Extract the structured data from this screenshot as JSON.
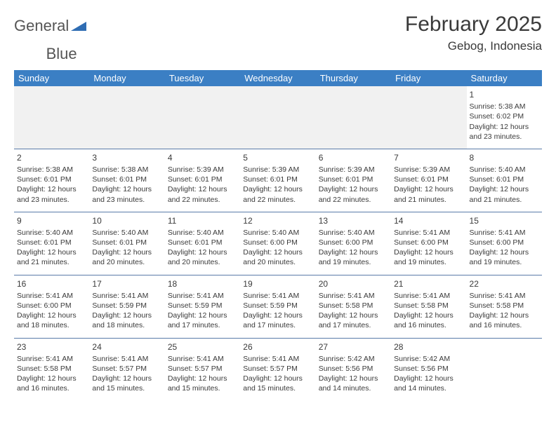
{
  "logo": {
    "word1": "General",
    "word2": "Blue"
  },
  "header": {
    "month_title": "February 2025",
    "location": "Gebog, Indonesia"
  },
  "colors": {
    "header_bg": "#3b7fc4",
    "header_text": "#ffffff",
    "row_divider": "#5a7ba8",
    "empty_bg": "#f1f1f1",
    "text": "#3a3a3a",
    "logo_tri": "#2f6db3"
  },
  "typography": {
    "month_title_fontsize": 30,
    "location_fontsize": 17,
    "day_header_fontsize": 13,
    "daynum_fontsize": 12,
    "cell_fontsize": 10.5
  },
  "calendar": {
    "day_headers": [
      "Sunday",
      "Monday",
      "Tuesday",
      "Wednesday",
      "Thursday",
      "Friday",
      "Saturday"
    ],
    "weeks": [
      [
        null,
        null,
        null,
        null,
        null,
        null,
        {
          "n": "1",
          "sunrise": "Sunrise: 5:38 AM",
          "sunset": "Sunset: 6:02 PM",
          "day1": "Daylight: 12 hours",
          "day2": "and 23 minutes."
        }
      ],
      [
        {
          "n": "2",
          "sunrise": "Sunrise: 5:38 AM",
          "sunset": "Sunset: 6:01 PM",
          "day1": "Daylight: 12 hours",
          "day2": "and 23 minutes."
        },
        {
          "n": "3",
          "sunrise": "Sunrise: 5:38 AM",
          "sunset": "Sunset: 6:01 PM",
          "day1": "Daylight: 12 hours",
          "day2": "and 23 minutes."
        },
        {
          "n": "4",
          "sunrise": "Sunrise: 5:39 AM",
          "sunset": "Sunset: 6:01 PM",
          "day1": "Daylight: 12 hours",
          "day2": "and 22 minutes."
        },
        {
          "n": "5",
          "sunrise": "Sunrise: 5:39 AM",
          "sunset": "Sunset: 6:01 PM",
          "day1": "Daylight: 12 hours",
          "day2": "and 22 minutes."
        },
        {
          "n": "6",
          "sunrise": "Sunrise: 5:39 AM",
          "sunset": "Sunset: 6:01 PM",
          "day1": "Daylight: 12 hours",
          "day2": "and 22 minutes."
        },
        {
          "n": "7",
          "sunrise": "Sunrise: 5:39 AM",
          "sunset": "Sunset: 6:01 PM",
          "day1": "Daylight: 12 hours",
          "day2": "and 21 minutes."
        },
        {
          "n": "8",
          "sunrise": "Sunrise: 5:40 AM",
          "sunset": "Sunset: 6:01 PM",
          "day1": "Daylight: 12 hours",
          "day2": "and 21 minutes."
        }
      ],
      [
        {
          "n": "9",
          "sunrise": "Sunrise: 5:40 AM",
          "sunset": "Sunset: 6:01 PM",
          "day1": "Daylight: 12 hours",
          "day2": "and 21 minutes."
        },
        {
          "n": "10",
          "sunrise": "Sunrise: 5:40 AM",
          "sunset": "Sunset: 6:01 PM",
          "day1": "Daylight: 12 hours",
          "day2": "and 20 minutes."
        },
        {
          "n": "11",
          "sunrise": "Sunrise: 5:40 AM",
          "sunset": "Sunset: 6:01 PM",
          "day1": "Daylight: 12 hours",
          "day2": "and 20 minutes."
        },
        {
          "n": "12",
          "sunrise": "Sunrise: 5:40 AM",
          "sunset": "Sunset: 6:00 PM",
          "day1": "Daylight: 12 hours",
          "day2": "and 20 minutes."
        },
        {
          "n": "13",
          "sunrise": "Sunrise: 5:40 AM",
          "sunset": "Sunset: 6:00 PM",
          "day1": "Daylight: 12 hours",
          "day2": "and 19 minutes."
        },
        {
          "n": "14",
          "sunrise": "Sunrise: 5:41 AM",
          "sunset": "Sunset: 6:00 PM",
          "day1": "Daylight: 12 hours",
          "day2": "and 19 minutes."
        },
        {
          "n": "15",
          "sunrise": "Sunrise: 5:41 AM",
          "sunset": "Sunset: 6:00 PM",
          "day1": "Daylight: 12 hours",
          "day2": "and 19 minutes."
        }
      ],
      [
        {
          "n": "16",
          "sunrise": "Sunrise: 5:41 AM",
          "sunset": "Sunset: 6:00 PM",
          "day1": "Daylight: 12 hours",
          "day2": "and 18 minutes."
        },
        {
          "n": "17",
          "sunrise": "Sunrise: 5:41 AM",
          "sunset": "Sunset: 5:59 PM",
          "day1": "Daylight: 12 hours",
          "day2": "and 18 minutes."
        },
        {
          "n": "18",
          "sunrise": "Sunrise: 5:41 AM",
          "sunset": "Sunset: 5:59 PM",
          "day1": "Daylight: 12 hours",
          "day2": "and 17 minutes."
        },
        {
          "n": "19",
          "sunrise": "Sunrise: 5:41 AM",
          "sunset": "Sunset: 5:59 PM",
          "day1": "Daylight: 12 hours",
          "day2": "and 17 minutes."
        },
        {
          "n": "20",
          "sunrise": "Sunrise: 5:41 AM",
          "sunset": "Sunset: 5:58 PM",
          "day1": "Daylight: 12 hours",
          "day2": "and 17 minutes."
        },
        {
          "n": "21",
          "sunrise": "Sunrise: 5:41 AM",
          "sunset": "Sunset: 5:58 PM",
          "day1": "Daylight: 12 hours",
          "day2": "and 16 minutes."
        },
        {
          "n": "22",
          "sunrise": "Sunrise: 5:41 AM",
          "sunset": "Sunset: 5:58 PM",
          "day1": "Daylight: 12 hours",
          "day2": "and 16 minutes."
        }
      ],
      [
        {
          "n": "23",
          "sunrise": "Sunrise: 5:41 AM",
          "sunset": "Sunset: 5:58 PM",
          "day1": "Daylight: 12 hours",
          "day2": "and 16 minutes."
        },
        {
          "n": "24",
          "sunrise": "Sunrise: 5:41 AM",
          "sunset": "Sunset: 5:57 PM",
          "day1": "Daylight: 12 hours",
          "day2": "and 15 minutes."
        },
        {
          "n": "25",
          "sunrise": "Sunrise: 5:41 AM",
          "sunset": "Sunset: 5:57 PM",
          "day1": "Daylight: 12 hours",
          "day2": "and 15 minutes."
        },
        {
          "n": "26",
          "sunrise": "Sunrise: 5:41 AM",
          "sunset": "Sunset: 5:57 PM",
          "day1": "Daylight: 12 hours",
          "day2": "and 15 minutes."
        },
        {
          "n": "27",
          "sunrise": "Sunrise: 5:42 AM",
          "sunset": "Sunset: 5:56 PM",
          "day1": "Daylight: 12 hours",
          "day2": "and 14 minutes."
        },
        {
          "n": "28",
          "sunrise": "Sunrise: 5:42 AM",
          "sunset": "Sunset: 5:56 PM",
          "day1": "Daylight: 12 hours",
          "day2": "and 14 minutes."
        },
        null
      ]
    ]
  }
}
